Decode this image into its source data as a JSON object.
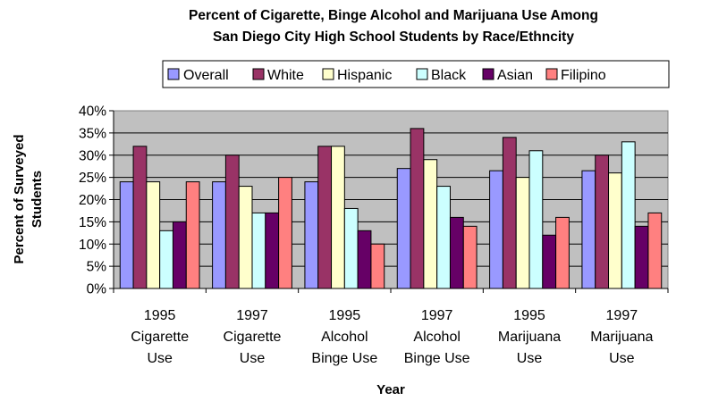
{
  "chart_data": {
    "type": "bar",
    "title_lines": [
      "Percent of Cigarette, Binge Alcohol and Marijuana Use Among",
      "San Diego City High School Students by Race/Ethncity"
    ],
    "xlabel": "Year",
    "ylabel_lines": [
      "Percent of Surveyed",
      "Students"
    ],
    "ylim": [
      0,
      40
    ],
    "y_ticks": [
      "0%",
      "5%",
      "10%",
      "15%",
      "20%",
      "25%",
      "30%",
      "35%",
      "40%"
    ],
    "grid": true,
    "legend_position": "top",
    "categories": [
      [
        "1995",
        "Cigarette",
        "Use"
      ],
      [
        "1997",
        "Cigarette",
        "Use"
      ],
      [
        "1995",
        "Alcohol",
        "Binge Use"
      ],
      [
        "1997",
        "Alcohol",
        "Binge Use"
      ],
      [
        "1995",
        "Marijuana",
        "Use"
      ],
      [
        "1997",
        "Marijuana",
        "Use"
      ]
    ],
    "series": [
      {
        "name": "Overall",
        "color": "#9999FF",
        "values": [
          24,
          24,
          24,
          27,
          26.5,
          26.5
        ]
      },
      {
        "name": "White",
        "color": "#993366",
        "values": [
          32,
          30,
          32,
          36,
          34,
          30
        ]
      },
      {
        "name": "Hispanic",
        "color": "#FFFFCC",
        "values": [
          24,
          23,
          32,
          29,
          25,
          26
        ]
      },
      {
        "name": "Black",
        "color": "#CCFFFF",
        "values": [
          13,
          17,
          18,
          23,
          31,
          33
        ]
      },
      {
        "name": "Asian",
        "color": "#660066",
        "values": [
          15,
          17,
          13,
          16,
          12,
          14
        ]
      },
      {
        "name": "Filipino",
        "color": "#FF8080",
        "values": [
          24,
          25,
          10,
          14,
          16,
          17
        ]
      }
    ],
    "plot_background": "#C0C0C0"
  }
}
